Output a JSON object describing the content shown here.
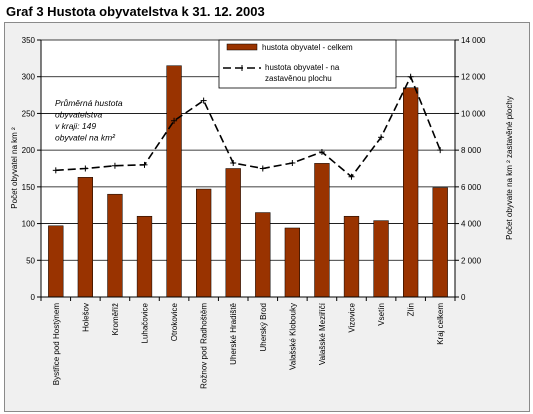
{
  "title": "Graf 3  Hustota obyvatelstva k 31. 12. 2003",
  "chart_data": {
    "type": "bar",
    "title": "Graf 3  Hustota obyvatelstva k 31. 12. 2003",
    "categories": [
      "Bystřice pod Hostýnem",
      "Holešov",
      "Kroměříž",
      "Luhačovice",
      "Otrokovice",
      "Rožnov pod Radhoštěm",
      "Uherské Hradiště",
      "Uherský Brod",
      "Valašské Klobouky",
      "Valašské Meziříčí",
      "Vizovice",
      "Vsetín",
      "Zlín",
      "Kraj celkem"
    ],
    "series": [
      {
        "name": "hustota obyvatel - celkem",
        "type": "bar",
        "axis": "left",
        "color": "#993300",
        "values": [
          97,
          163,
          140,
          110,
          315,
          147,
          175,
          115,
          94,
          182,
          110,
          104,
          285,
          149
        ]
      },
      {
        "name": "hustota obyvatel - na zastavěnou plochu",
        "type": "line",
        "axis": "right",
        "color": "#000000",
        "dashed": true,
        "values": [
          6900,
          7000,
          7150,
          7200,
          9600,
          10700,
          7300,
          7000,
          7300,
          7900,
          6550,
          8700,
          12000,
          8000
        ]
      }
    ],
    "ylabel": "Počet obyvatel na km ²",
    "y2label": "Počet obyvate na km ² zastavěné plochy",
    "ylim": [
      0,
      350
    ],
    "y2lim": [
      0,
      14000
    ],
    "yticks": [
      "0",
      "50",
      "100",
      "150",
      "200",
      "250",
      "300",
      "350"
    ],
    "y2ticks": [
      "0",
      "2 000",
      "4 000",
      "6 000",
      "8 000",
      "10 000",
      "12 000",
      "14 000"
    ],
    "grid": true,
    "legend": "top-center",
    "annotation": [
      "Průměrná hustota",
      "obyvatelstva",
      "v kraji: 149",
      "obyvatel na km²"
    ]
  }
}
